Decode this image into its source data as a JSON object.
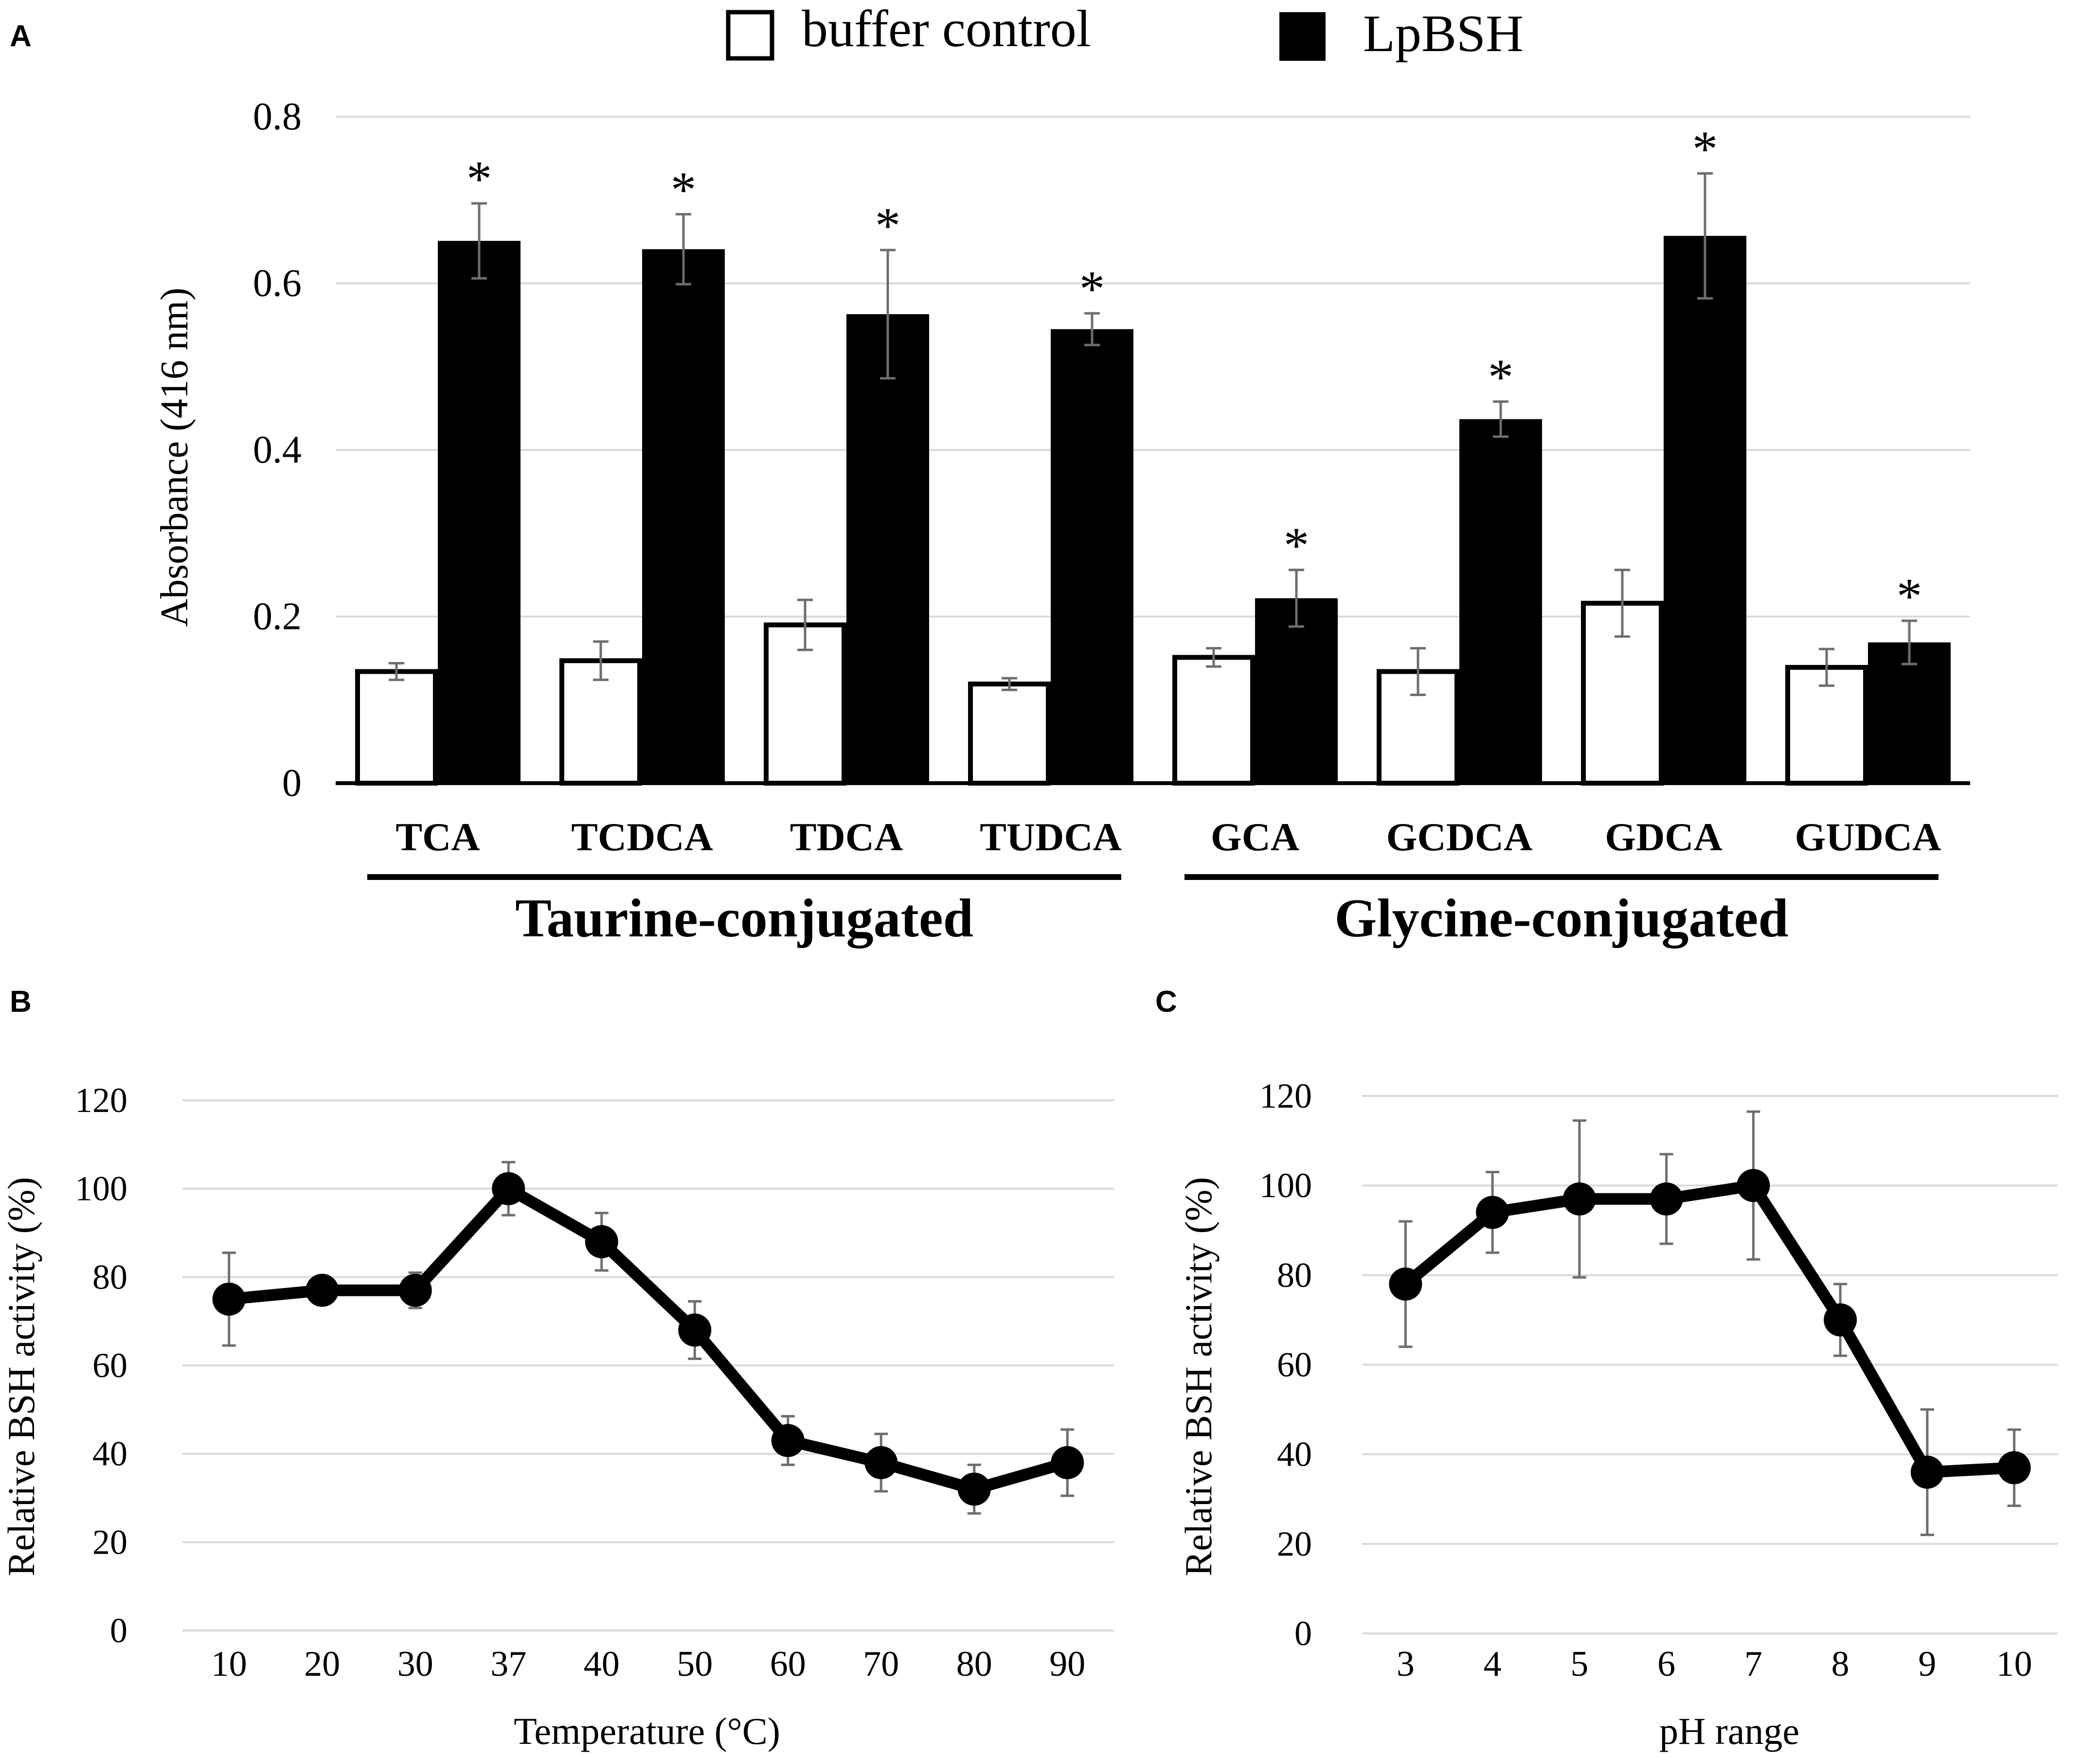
{
  "figure": {
    "panel_labels": [
      "A",
      "B",
      "C"
    ]
  },
  "chart_data": [
    {
      "type": "bar",
      "panel": "A",
      "ylabel": "Absorbance (416 nm)",
      "ylim": [
        0,
        0.8
      ],
      "yticks": [
        "0",
        "0.2",
        "0.4",
        "0.6",
        "0.8"
      ],
      "ytick_values": [
        0,
        0.2,
        0.4,
        0.6,
        0.8
      ],
      "categories": [
        "TCA",
        "TCDCA",
        "TDCA",
        "TUDCA",
        "GCA",
        "GCDCA",
        "GDCA",
        "GUDCA"
      ],
      "groups": [
        {
          "label": "Taurine-conjugated",
          "from": 0,
          "to": 3
        },
        {
          "label": "Glycine-conjugated",
          "from": 4,
          "to": 7
        }
      ],
      "legend": [
        "buffer control",
        "LpBSH"
      ],
      "series": [
        {
          "name": "buffer control",
          "color": "#ffffff",
          "values": [
            0.134,
            0.147,
            0.19,
            0.119,
            0.151,
            0.134,
            0.216,
            0.139
          ],
          "errors": [
            0.01,
            0.023,
            0.03,
            0.007,
            0.011,
            0.028,
            0.04,
            0.022
          ]
        },
        {
          "name": "LpBSH",
          "color": "#000000",
          "values": [
            0.651,
            0.641,
            0.563,
            0.545,
            0.222,
            0.437,
            0.657,
            0.169
          ],
          "errors": [
            0.045,
            0.042,
            0.077,
            0.019,
            0.034,
            0.021,
            0.075,
            0.026
          ]
        }
      ],
      "significance": [
        "*",
        "*",
        "*",
        "*",
        "*",
        "*",
        "*",
        "*"
      ]
    },
    {
      "type": "line",
      "panel": "B",
      "xlabel": "Temperature (°C)",
      "ylabel": "Relative BSH activity (%)",
      "ylim": [
        0,
        120
      ],
      "yticks": [
        "0",
        "20",
        "40",
        "60",
        "80",
        "100",
        "120"
      ],
      "ytick_values": [
        0,
        20,
        40,
        60,
        80,
        100,
        120
      ],
      "categories": [
        "10",
        "20",
        "30",
        "37",
        "40",
        "50",
        "60",
        "70",
        "80",
        "90"
      ],
      "values": [
        75,
        77,
        77,
        100,
        88,
        68,
        43,
        38,
        32,
        38
      ],
      "errors": [
        10.5,
        0,
        4,
        6,
        6.5,
        6.5,
        5.5,
        6.5,
        5.5,
        7.5
      ]
    },
    {
      "type": "line",
      "panel": "C",
      "xlabel": "pH range",
      "ylabel": "Relative BSH activity (%)",
      "ylim": [
        0,
        120
      ],
      "yticks": [
        "0",
        "20",
        "40",
        "60",
        "80",
        "100",
        "120"
      ],
      "ytick_values": [
        0,
        20,
        40,
        60,
        80,
        100,
        120
      ],
      "categories": [
        "3",
        "4",
        "5",
        "6",
        "7",
        "8",
        "9",
        "10"
      ],
      "values": [
        78,
        94,
        97,
        97,
        100,
        70,
        36,
        37
      ],
      "errors": [
        14,
        9,
        17.5,
        10,
        16.5,
        8,
        14,
        8.5
      ]
    }
  ]
}
